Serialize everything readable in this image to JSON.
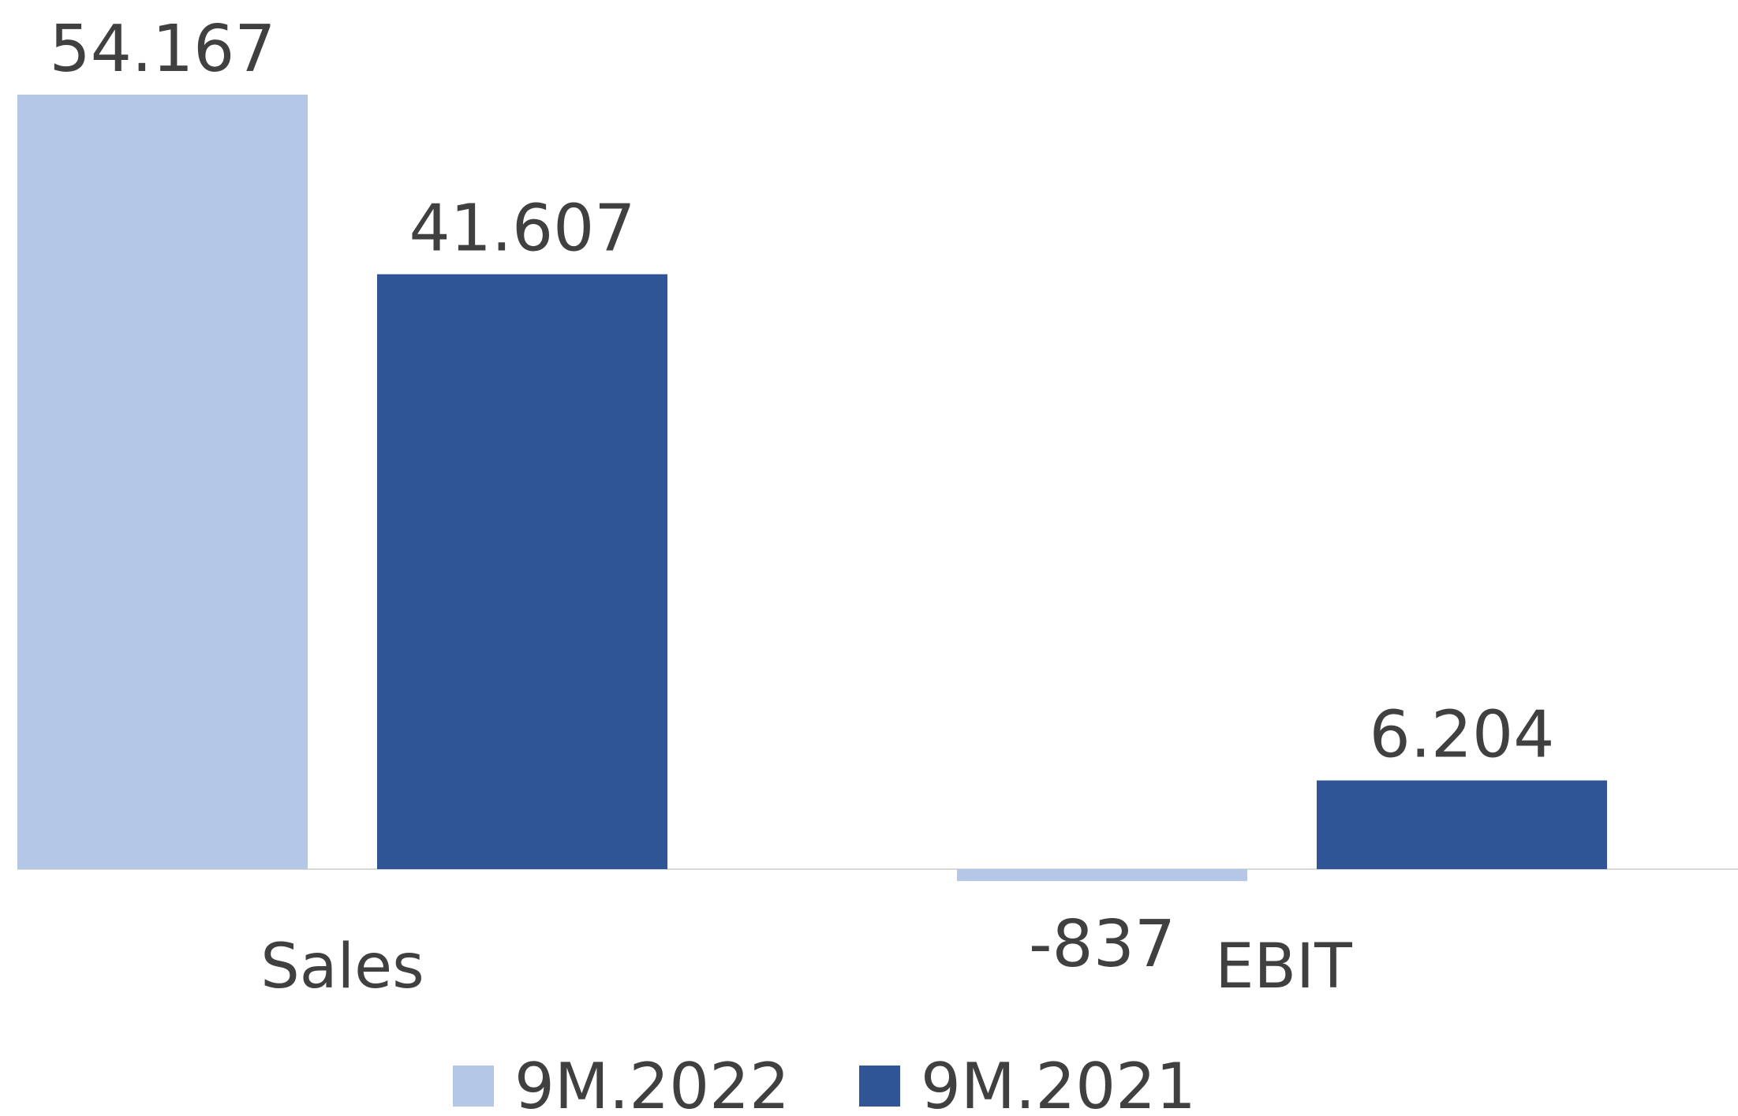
{
  "chart_data": {
    "type": "bar",
    "categories": [
      "Sales",
      "EBIT"
    ],
    "series": [
      {
        "name": "9M.2022",
        "values": [
          54167,
          -837
        ],
        "labels": [
          "54.167",
          "-837"
        ],
        "color": "#b4c7e7"
      },
      {
        "name": "9M.2021",
        "values": [
          41607,
          6204
        ],
        "labels": [
          "41.607",
          "6.204"
        ],
        "color": "#2f5597"
      }
    ],
    "title": "",
    "xlabel": "",
    "ylabel": "",
    "ylim": [
      -3000,
      54167
    ],
    "grid": false,
    "legend": "bottom",
    "baseline_color": "#d9d9d9"
  }
}
